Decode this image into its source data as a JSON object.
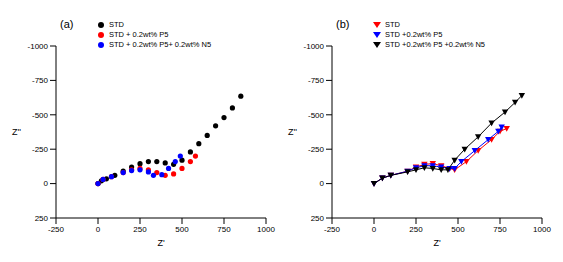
{
  "chart_data": [
    {
      "type": "scatter",
      "title": "(a)",
      "x_label": "Z'",
      "y_label": "Z''",
      "xlim": [
        -250,
        1000
      ],
      "xticks": [
        -250,
        0,
        250,
        500,
        750,
        1000
      ],
      "ylim": [
        -1000,
        250
      ],
      "yticks": [
        -1000,
        -750,
        -500,
        -250,
        0,
        250
      ],
      "legend": "top",
      "series": [
        {
          "name": "STD",
          "color": "#000000",
          "marker": "circle",
          "line_style": "none",
          "x": [
            0,
            20,
            50,
            100,
            150,
            200,
            250,
            300,
            350,
            400,
            450,
            500,
            550,
            600,
            650,
            700,
            750,
            800,
            850
          ],
          "values": [
            0,
            -20,
            -35,
            -60,
            -90,
            -120,
            -145,
            -160,
            -160,
            -150,
            -140,
            -170,
            -230,
            -290,
            -350,
            -420,
            -480,
            -550,
            -635
          ]
        },
        {
          "name": "STD + 0.2wt% P5",
          "color": "#ff0000",
          "marker": "circle",
          "line_style": "none",
          "x": [
            0,
            30,
            80,
            150,
            200,
            250,
            300,
            350,
            400,
            450,
            500,
            550,
            580
          ],
          "values": [
            0,
            -30,
            -50,
            -80,
            -100,
            -110,
            -100,
            -80,
            -60,
            -70,
            -110,
            -160,
            -200
          ]
        },
        {
          "name": "STD + 0.2wt% P5+ 0.2wt% N5",
          "color": "#0000ff",
          "marker": "circle",
          "line_style": "none",
          "x": [
            0,
            30,
            80,
            150,
            200,
            250,
            300,
            330,
            380,
            420,
            460,
            490
          ],
          "values": [
            0,
            -30,
            -50,
            -80,
            -95,
            -100,
            -85,
            -60,
            -65,
            -110,
            -160,
            -200
          ]
        }
      ]
    },
    {
      "type": "scatter",
      "title": "(b)",
      "x_label": "Z'",
      "y_label": "Z''",
      "xlim": [
        -250,
        1000
      ],
      "xticks": [
        -250,
        0,
        250,
        500,
        750,
        1000
      ],
      "ylim": [
        -1000,
        250
      ],
      "yticks": [
        -1000,
        -750,
        -500,
        -250,
        0,
        250
      ],
      "legend": "top",
      "series": [
        {
          "name": "STD",
          "color": "#ff0000",
          "marker": "triangle-down",
          "line_style": "solid",
          "x": [
            0,
            50,
            100,
            200,
            250,
            300,
            350,
            400,
            450,
            480,
            550,
            620,
            700,
            750,
            790
          ],
          "values": [
            0,
            -40,
            -60,
            -90,
            -120,
            -140,
            -145,
            -130,
            -110,
            -100,
            -160,
            -240,
            -320,
            -380,
            -400
          ]
        },
        {
          "name": "STD +0.2wt% P5",
          "color": "#0000ff",
          "marker": "triangle-down",
          "line_style": "solid",
          "x": [
            0,
            50,
            100,
            200,
            250,
            300,
            350,
            400,
            450,
            480,
            520,
            600,
            680,
            740,
            760
          ],
          "values": [
            0,
            -40,
            -60,
            -90,
            -115,
            -130,
            -130,
            -120,
            -110,
            -110,
            -160,
            -240,
            -320,
            -380,
            -410
          ]
        },
        {
          "name": "STD +0.2wt% P5 +0.2wt% N5",
          "color": "#000000",
          "marker": "triangle-down",
          "line_style": "solid",
          "x": [
            0,
            50,
            100,
            200,
            250,
            300,
            350,
            400,
            440,
            480,
            540,
            620,
            700,
            780,
            840,
            880
          ],
          "values": [
            0,
            -40,
            -60,
            -85,
            -100,
            -115,
            -110,
            -100,
            -100,
            -170,
            -250,
            -340,
            -440,
            -520,
            -590,
            -640
          ]
        }
      ]
    }
  ]
}
